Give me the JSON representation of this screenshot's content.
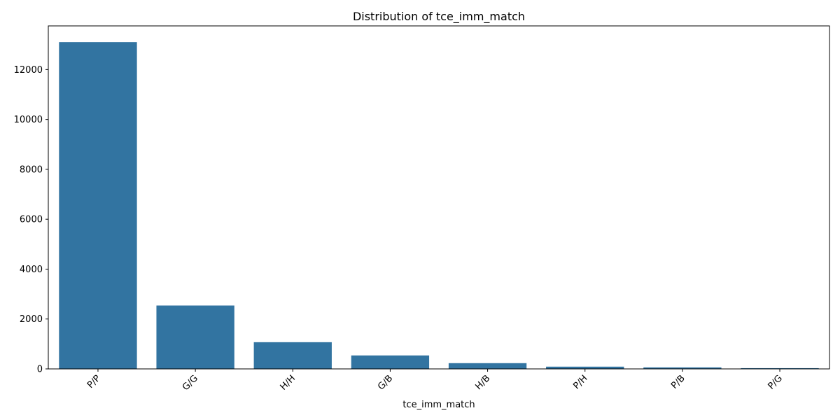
{
  "chart_data": {
    "type": "bar",
    "title": "Distribution of tce_imm_match",
    "xlabel": "tce_imm_match",
    "ylabel": "",
    "categories": [
      "P/P",
      "G/G",
      "H/H",
      "G/B",
      "H/B",
      "P/H",
      "P/B",
      "P/G"
    ],
    "values": [
      13100,
      2540,
      1070,
      540,
      230,
      90,
      60,
      30
    ],
    "ylim": [
      0,
      13750
    ],
    "yticks": [
      0,
      2000,
      4000,
      6000,
      8000,
      10000,
      12000
    ],
    "grid": false,
    "legend": "none",
    "bar_color": "#3274a1"
  }
}
